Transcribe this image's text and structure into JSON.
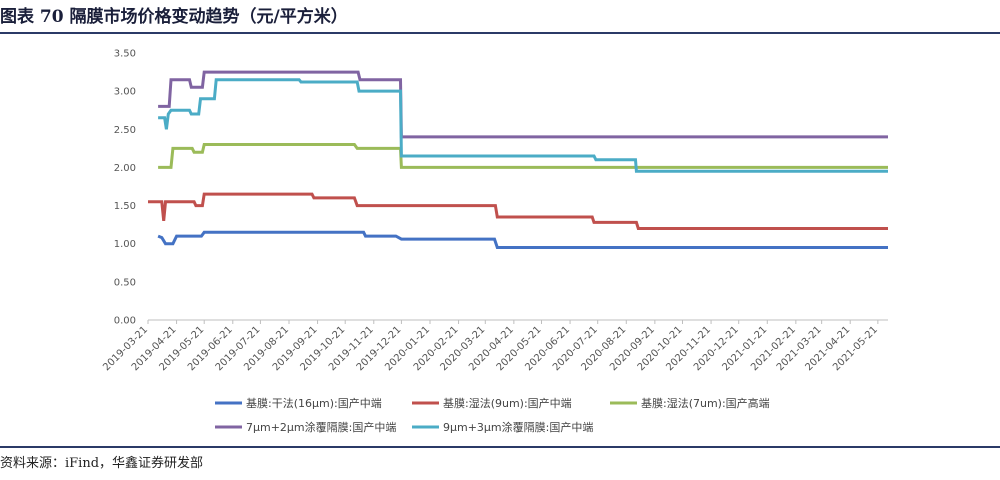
{
  "header": {
    "title": "图表 70 隔膜市场价格变动趋势（元/平方米）"
  },
  "footer": {
    "source": "资料来源：iFind，华鑫证券研发部"
  },
  "chart_data": {
    "type": "line",
    "title": "图表 70 隔膜市场价格变动趋势（元/平方米）",
    "xlabel": "",
    "ylabel": "",
    "ylim": [
      0,
      3.5
    ],
    "yticks": [
      "0.00",
      "0.50",
      "1.00",
      "1.50",
      "2.00",
      "2.50",
      "3.00",
      "3.50"
    ],
    "x_domain": [
      "2019-03-21",
      "2021-06-01"
    ],
    "x_ticks": [
      "2019-03-21",
      "2019-04-21",
      "2019-05-21",
      "2019-06-21",
      "2019-07-21",
      "2019-08-21",
      "2019-09-21",
      "2019-10-21",
      "2019-11-21",
      "2019-12-21",
      "2020-01-21",
      "2020-02-21",
      "2020-03-21",
      "2020-04-21",
      "2020-05-21",
      "2020-06-21",
      "2020-07-21",
      "2020-08-21",
      "2020-09-21",
      "2020-10-21",
      "2020-11-21",
      "2020-12-21",
      "2021-01-21",
      "2021-02-21",
      "2021-03-21",
      "2021-04-21",
      "2021-05-21"
    ],
    "grid": false,
    "legend_position": "bottom",
    "series": [
      {
        "name": "基膜:干法(16μm):国产中端",
        "color": "#4472c4",
        "points": [
          [
            "2019-04-01",
            1.1
          ],
          [
            "2019-04-05",
            1.08
          ],
          [
            "2019-04-09",
            1.0
          ],
          [
            "2019-04-17",
            1.0
          ],
          [
            "2019-04-21",
            1.1
          ],
          [
            "2019-05-18",
            1.1
          ],
          [
            "2019-05-21",
            1.15
          ],
          [
            "2019-11-10",
            1.15
          ],
          [
            "2019-11-12",
            1.1
          ],
          [
            "2019-12-15",
            1.1
          ],
          [
            "2019-12-21",
            1.06
          ],
          [
            "2020-03-31",
            1.06
          ],
          [
            "2020-04-03",
            0.95
          ],
          [
            "2021-06-01",
            0.95
          ]
        ]
      },
      {
        "name": "基膜:湿法(9um):国产中端",
        "color": "#c0504d",
        "points": [
          [
            "2019-03-21",
            1.55
          ],
          [
            "2019-04-05",
            1.55
          ],
          [
            "2019-04-07",
            1.3
          ],
          [
            "2019-04-09",
            1.55
          ],
          [
            "2019-05-10",
            1.55
          ],
          [
            "2019-05-12",
            1.5
          ],
          [
            "2019-05-19",
            1.5
          ],
          [
            "2019-05-21",
            1.65
          ],
          [
            "2019-09-15",
            1.65
          ],
          [
            "2019-09-17",
            1.6
          ],
          [
            "2019-10-31",
            1.6
          ],
          [
            "2019-11-03",
            1.5
          ],
          [
            "2020-04-01",
            1.5
          ],
          [
            "2020-04-03",
            1.35
          ],
          [
            "2020-07-15",
            1.35
          ],
          [
            "2020-07-17",
            1.28
          ],
          [
            "2020-09-01",
            1.28
          ],
          [
            "2020-09-03",
            1.2
          ],
          [
            "2021-06-01",
            1.2
          ]
        ]
      },
      {
        "name": "基膜:湿法(7um):国产高端",
        "color": "#9bbb59",
        "points": [
          [
            "2019-04-01",
            2.0
          ],
          [
            "2019-04-15",
            2.0
          ],
          [
            "2019-04-17",
            2.25
          ],
          [
            "2019-05-08",
            2.25
          ],
          [
            "2019-05-10",
            2.2
          ],
          [
            "2019-05-19",
            2.2
          ],
          [
            "2019-05-21",
            2.3
          ],
          [
            "2019-10-31",
            2.3
          ],
          [
            "2019-11-03",
            2.25
          ],
          [
            "2019-12-20",
            2.25
          ],
          [
            "2019-12-21",
            2.0
          ],
          [
            "2021-06-01",
            2.0
          ]
        ]
      },
      {
        "name": "7μm+2μm涂覆隔膜:国产中端",
        "color": "#8064a2",
        "points": [
          [
            "2019-04-01",
            2.8
          ],
          [
            "2019-04-13",
            2.8
          ],
          [
            "2019-04-15",
            3.15
          ],
          [
            "2019-05-05",
            3.15
          ],
          [
            "2019-05-07",
            3.05
          ],
          [
            "2019-05-19",
            3.05
          ],
          [
            "2019-05-21",
            3.25
          ],
          [
            "2019-11-04",
            3.25
          ],
          [
            "2019-11-06",
            3.15
          ],
          [
            "2019-12-20",
            3.15
          ],
          [
            "2019-12-21",
            2.4
          ],
          [
            "2021-06-01",
            2.4
          ]
        ]
      },
      {
        "name": "9μm+3μm涂覆隔膜:国产中端",
        "color": "#4bacc6",
        "points": [
          [
            "2019-04-01",
            2.65
          ],
          [
            "2019-04-08",
            2.65
          ],
          [
            "2019-04-10",
            2.5
          ],
          [
            "2019-04-12",
            2.7
          ],
          [
            "2019-04-15",
            2.75
          ],
          [
            "2019-05-05",
            2.75
          ],
          [
            "2019-05-07",
            2.7
          ],
          [
            "2019-05-15",
            2.7
          ],
          [
            "2019-05-17",
            2.9
          ],
          [
            "2019-06-01",
            2.9
          ],
          [
            "2019-06-03",
            3.15
          ],
          [
            "2019-09-01",
            3.15
          ],
          [
            "2019-09-03",
            3.12
          ],
          [
            "2019-11-03",
            3.12
          ],
          [
            "2019-11-05",
            3.0
          ],
          [
            "2019-12-20",
            3.0
          ],
          [
            "2019-12-21",
            2.15
          ],
          [
            "2020-07-17",
            2.15
          ],
          [
            "2020-07-19",
            2.1
          ],
          [
            "2020-08-31",
            2.1
          ],
          [
            "2020-09-01",
            1.95
          ],
          [
            "2021-06-01",
            1.95
          ]
        ]
      }
    ]
  }
}
